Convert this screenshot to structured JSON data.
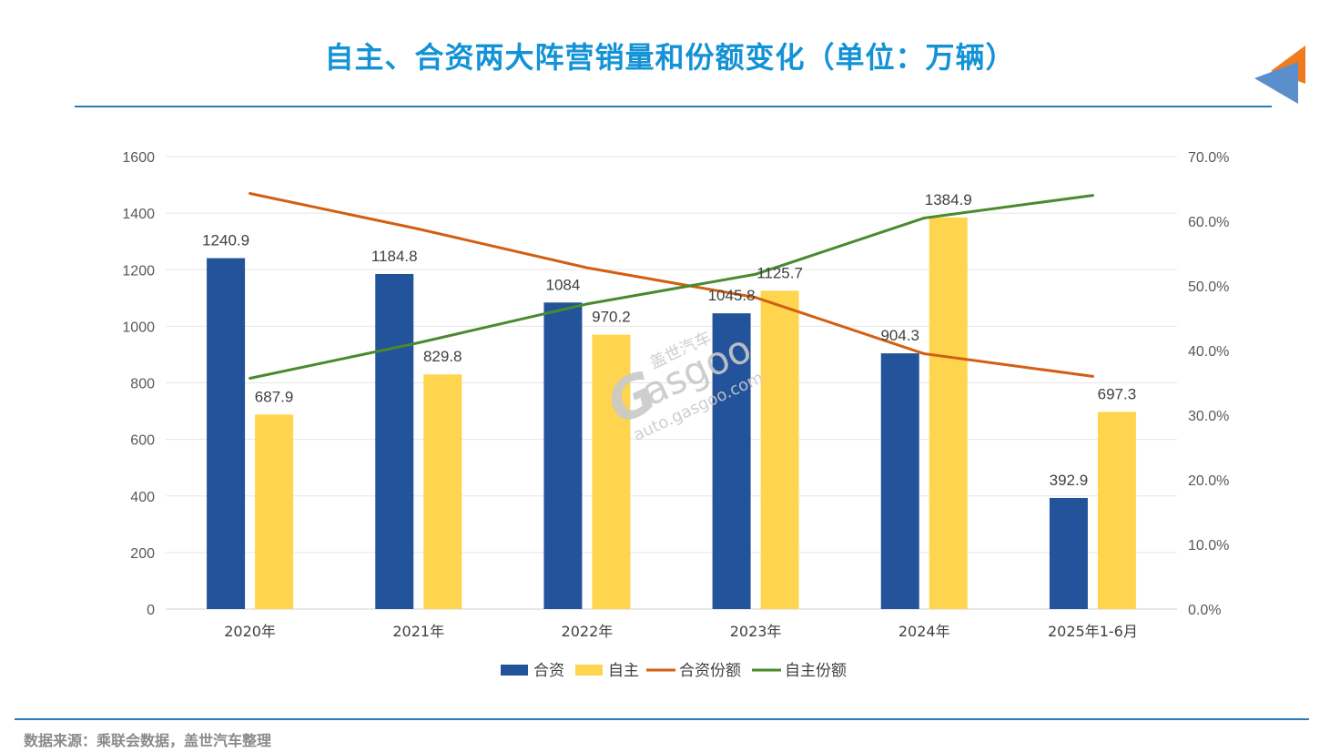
{
  "header": {
    "title": "自主、合资两大阵营销量和份额变化（单位：万辆）"
  },
  "footer": {
    "source": "数据来源：乘联会数据，盖世汽车整理"
  },
  "watermark": {
    "brand": "盖世汽车",
    "logo_text": "asgoo",
    "url": "auto.gasgoo.com"
  },
  "colors": {
    "title": "#1392d6",
    "jv_bar": "#23539a",
    "own_bar": "#ffd54f",
    "jv_share_line": "#d35f12",
    "own_share_line": "#4a8a2e",
    "gridline": "#e6e6e6",
    "logo_orange": "#f07b1e",
    "logo_blue": "#5b8fcc"
  },
  "chart_data": {
    "type": "bar",
    "categories": [
      "2020年",
      "2021年",
      "2022年",
      "2023年",
      "2024年",
      "2025年1-6月"
    ],
    "series": [
      {
        "name": "合资",
        "kind": "bar",
        "axis": "left",
        "values": [
          1240.9,
          1184.8,
          1084,
          1045.8,
          904.3,
          392.9
        ],
        "labels": [
          "1240.9",
          "1184.8",
          "1084",
          "1045.8",
          "904.3",
          "392.9"
        ]
      },
      {
        "name": "自主",
        "kind": "bar",
        "axis": "left",
        "values": [
          687.9,
          829.8,
          970.2,
          1125.7,
          1384.9,
          697.3
        ],
        "labels": [
          "687.9",
          "829.8",
          "970.2",
          "1125.7",
          "1384.9",
          "697.3"
        ]
      },
      {
        "name": "合资份额",
        "kind": "line",
        "axis": "right",
        "values": [
          64.3,
          58.8,
          52.8,
          48.2,
          39.5,
          36.0
        ]
      },
      {
        "name": "自主份额",
        "kind": "line",
        "axis": "right",
        "values": [
          35.7,
          41.2,
          47.2,
          51.8,
          60.5,
          64.0
        ]
      }
    ],
    "y_left": {
      "min": 0,
      "max": 1600,
      "ticks": [
        "0",
        "200",
        "400",
        "600",
        "800",
        "1000",
        "1200",
        "1400",
        "1600"
      ]
    },
    "y_right": {
      "min": 0,
      "max": 70,
      "ticks": [
        "0.0%",
        "10.0%",
        "20.0%",
        "30.0%",
        "40.0%",
        "50.0%",
        "60.0%",
        "70.0%"
      ]
    },
    "grid": true,
    "legend_position": "bottom"
  }
}
